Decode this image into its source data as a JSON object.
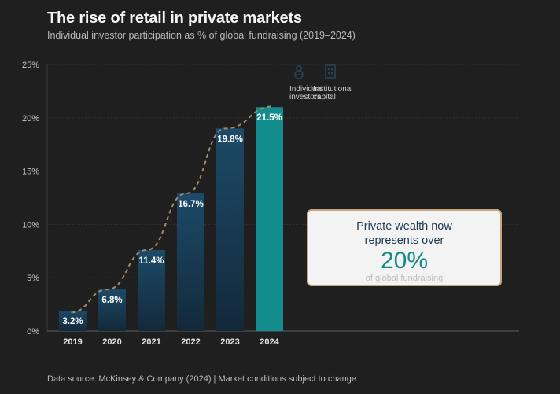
{
  "header": {
    "title": "The rise of retail in private markets",
    "subtitle": "Individual investor participation as % of global fundraising (2019–2024)"
  },
  "legend": [
    {
      "label_line1": "Individual",
      "label_line2": "investors",
      "icon": "person-icon"
    },
    {
      "label_line1": "Institutional",
      "label_line2": "capital",
      "icon": "building-icon"
    }
  ],
  "callout": {
    "line1": "Private wealth now",
    "line2": "represents over",
    "highlight": "20%",
    "caption": "of global fundraising"
  },
  "footer": "Data source: McKinsey & Company (2024) | Market conditions subject to change",
  "colors": {
    "background": "#1f1f1f",
    "bar_dark_top": "#1c4a68",
    "bar_dark_bottom": "#13293a",
    "bar_highlight": "#128c8c",
    "trend_line": "#a08a6c",
    "callout_border": "#c9a57c",
    "callout_accent": "#138a86"
  },
  "chart_data": {
    "type": "bar",
    "title": "The rise of retail in private markets",
    "subtitle": "Individual investor participation as % of global fundraising (2019–2024)",
    "xlabel": "",
    "ylabel": "",
    "categories": [
      "2019",
      "2020",
      "2021",
      "2022",
      "2023",
      "2024"
    ],
    "values": [
      3.2,
      6.8,
      11.4,
      16.7,
      19.8,
      21.5
    ],
    "value_labels": [
      "3.2%",
      "6.8%",
      "11.4%",
      "16.7%",
      "19.8%",
      "21.5%"
    ],
    "drawn_heights": [
      1.9,
      3.9,
      7.6,
      12.9,
      19.0,
      21.0
    ],
    "highlight_index": 5,
    "ylim": [
      0,
      25
    ],
    "yticks": [
      0,
      5,
      10,
      15,
      20,
      25
    ],
    "ytick_labels": [
      "0%",
      "5%",
      "10%",
      "15%",
      "20%",
      "25%"
    ],
    "grid": true,
    "trend_line": "dashed",
    "legend_position": "top-right"
  }
}
